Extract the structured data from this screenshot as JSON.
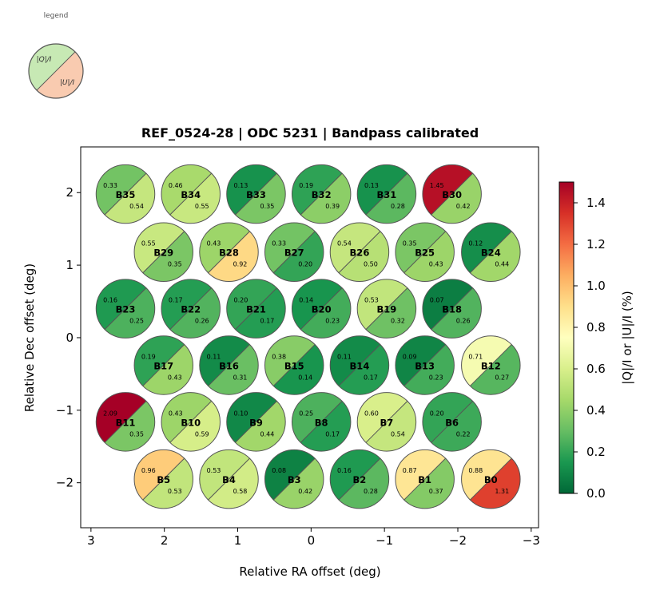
{
  "chart_data": {
    "type": "scatter",
    "title": "REF_0524-28  |  ODC 5231  |  Bandpass calibrated",
    "xlabel": "Relative RA offset (deg)",
    "ylabel": "Relative Dec offset (deg)",
    "xlim": [
      3.14,
      -3.1
    ],
    "ylim": [
      -2.62,
      2.63
    ],
    "xticks": [
      3,
      2,
      1,
      0,
      -1,
      -2,
      -3
    ],
    "xtick_labels": [
      "3",
      "2",
      "1",
      "0",
      "−1",
      "−2",
      "−3"
    ],
    "yticks": [
      2,
      1,
      0,
      -1,
      -2
    ],
    "ytick_labels": [
      "2",
      "1",
      "0",
      "−1",
      "−2"
    ],
    "grid": false,
    "beam_radius_deg": 0.4,
    "colormap": {
      "name": "RdYlGn_r",
      "range": [
        0,
        1.5
      ],
      "stops": [
        "#006837",
        "#1a9850",
        "#66bd63",
        "#a6d96a",
        "#d9ef8b",
        "#ffffbf",
        "#fee08b",
        "#fdae61",
        "#f46d43",
        "#d73027",
        "#a50026"
      ]
    },
    "colorbar": {
      "label": "|Q|/I  or  |U|/I  (%)",
      "ticks": [
        0.0,
        0.2,
        0.4,
        0.6,
        0.8,
        1.0,
        1.2,
        1.4
      ],
      "tick_labels": [
        "0.0",
        "0.2",
        "0.4",
        "0.6",
        "0.8",
        "1.0",
        "1.2",
        "1.4"
      ]
    },
    "legend": {
      "title": "legend",
      "q_label": "|Q|/I",
      "u_label": "|U|/I",
      "q_color": "#c7e9b4",
      "u_color": "#f9cbb0"
    },
    "beams": [
      {
        "name": "B35",
        "ra": 2.53,
        "dec": 1.98,
        "q": 0.33,
        "u": 0.54
      },
      {
        "name": "B34",
        "ra": 1.64,
        "dec": 1.98,
        "q": 0.46,
        "u": 0.55
      },
      {
        "name": "B33",
        "ra": 0.75,
        "dec": 1.98,
        "q": 0.13,
        "u": 0.35
      },
      {
        "name": "B32",
        "ra": -0.14,
        "dec": 1.98,
        "q": 0.19,
        "u": 0.39
      },
      {
        "name": "B31",
        "ra": -1.03,
        "dec": 1.98,
        "q": 0.13,
        "u": 0.28
      },
      {
        "name": "B30",
        "ra": -1.92,
        "dec": 1.98,
        "q": 1.45,
        "u": 0.42
      },
      {
        "name": "B29",
        "ra": 2.01,
        "dec": 1.18,
        "q": 0.55,
        "u": 0.35
      },
      {
        "name": "B28",
        "ra": 1.12,
        "dec": 1.18,
        "q": 0.43,
        "u": 0.92
      },
      {
        "name": "B27",
        "ra": 0.23,
        "dec": 1.18,
        "q": 0.33,
        "u": 0.2
      },
      {
        "name": "B26",
        "ra": -0.66,
        "dec": 1.18,
        "q": 0.54,
        "u": 0.5
      },
      {
        "name": "B25",
        "ra": -1.55,
        "dec": 1.18,
        "q": 0.35,
        "u": 0.43
      },
      {
        "name": "B24",
        "ra": -2.45,
        "dec": 1.18,
        "q": 0.12,
        "u": 0.44
      },
      {
        "name": "B23",
        "ra": 2.53,
        "dec": 0.4,
        "q": 0.16,
        "u": 0.25
      },
      {
        "name": "B22",
        "ra": 1.64,
        "dec": 0.4,
        "q": 0.17,
        "u": 0.26
      },
      {
        "name": "B21",
        "ra": 0.75,
        "dec": 0.4,
        "q": 0.2,
        "u": 0.17
      },
      {
        "name": "B20",
        "ra": -0.14,
        "dec": 0.4,
        "q": 0.14,
        "u": 0.23
      },
      {
        "name": "B19",
        "ra": -1.03,
        "dec": 0.4,
        "q": 0.53,
        "u": 0.32
      },
      {
        "name": "B18",
        "ra": -1.92,
        "dec": 0.4,
        "q": 0.07,
        "u": 0.26
      },
      {
        "name": "B17",
        "ra": 2.01,
        "dec": -0.38,
        "q": 0.19,
        "u": 0.43
      },
      {
        "name": "B16",
        "ra": 1.12,
        "dec": -0.38,
        "q": 0.11,
        "u": 0.31
      },
      {
        "name": "B15",
        "ra": 0.23,
        "dec": -0.38,
        "q": 0.38,
        "u": 0.14
      },
      {
        "name": "B14",
        "ra": -0.66,
        "dec": -0.38,
        "q": 0.11,
        "u": 0.17
      },
      {
        "name": "B13",
        "ra": -1.55,
        "dec": -0.38,
        "q": 0.09,
        "u": 0.23
      },
      {
        "name": "B12",
        "ra": -2.45,
        "dec": -0.38,
        "q": 0.71,
        "u": 0.27
      },
      {
        "name": "B11",
        "ra": 2.53,
        "dec": -1.16,
        "q": 2.09,
        "u": 0.35
      },
      {
        "name": "B10",
        "ra": 1.64,
        "dec": -1.16,
        "q": 0.43,
        "u": 0.59
      },
      {
        "name": "B9",
        "ra": 0.75,
        "dec": -1.16,
        "q": 0.1,
        "u": 0.44
      },
      {
        "name": "B8",
        "ra": -0.14,
        "dec": -1.16,
        "q": 0.25,
        "u": 0.17
      },
      {
        "name": "B7",
        "ra": -1.03,
        "dec": -1.16,
        "q": 0.6,
        "u": 0.54
      },
      {
        "name": "B6",
        "ra": -1.92,
        "dec": -1.16,
        "q": 0.2,
        "u": 0.22
      },
      {
        "name": "B5",
        "ra": 2.01,
        "dec": -1.95,
        "q": 0.96,
        "u": 0.53
      },
      {
        "name": "B4",
        "ra": 1.12,
        "dec": -1.95,
        "q": 0.53,
        "u": 0.58
      },
      {
        "name": "B3",
        "ra": 0.23,
        "dec": -1.95,
        "q": 0.08,
        "u": 0.42
      },
      {
        "name": "B2",
        "ra": -0.66,
        "dec": -1.95,
        "q": 0.16,
        "u": 0.28
      },
      {
        "name": "B1",
        "ra": -1.55,
        "dec": -1.95,
        "q": 0.87,
        "u": 0.37
      },
      {
        "name": "B0",
        "ra": -2.45,
        "dec": -1.95,
        "q": 0.88,
        "u": 1.31
      }
    ]
  }
}
